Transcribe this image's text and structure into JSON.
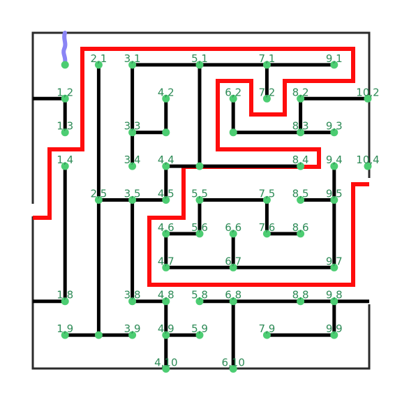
{
  "title": "",
  "colors": {
    "background": "#ffffff",
    "maze_wall": "#2a2a2a",
    "tree_edge": "#000000",
    "node": "#4ccd72",
    "label": "#2e8b57",
    "solution_path": "#ff0000",
    "start_marker": "#8a84f5"
  },
  "nodes": [
    {
      "id": "1,1",
      "label": "",
      "x": 1,
      "y": 1
    },
    {
      "id": "2,1",
      "label": "2,1",
      "x": 2,
      "y": 1
    },
    {
      "id": "3,1",
      "label": "3,1",
      "x": 3,
      "y": 1
    },
    {
      "id": "5,1",
      "label": "5,1",
      "x": 5,
      "y": 1
    },
    {
      "id": "7,1",
      "label": "7,1",
      "x": 7,
      "y": 1
    },
    {
      "id": "9,1",
      "label": "9,1",
      "x": 9,
      "y": 1
    },
    {
      "id": "1,2",
      "label": "1,2",
      "x": 1,
      "y": 2
    },
    {
      "id": "4,2",
      "label": "4,2",
      "x": 4,
      "y": 2
    },
    {
      "id": "6,2",
      "label": "6,2",
      "x": 6,
      "y": 2
    },
    {
      "id": "7,2",
      "label": "7,2",
      "x": 7,
      "y": 2
    },
    {
      "id": "8,2",
      "label": "8,2",
      "x": 8,
      "y": 2
    },
    {
      "id": "10,2",
      "label": "10,2",
      "x": 10,
      "y": 2
    },
    {
      "id": "1,3",
      "label": "1,3",
      "x": 1,
      "y": 3
    },
    {
      "id": "3,3",
      "label": "3,3",
      "x": 3,
      "y": 3
    },
    {
      "id": "4,3",
      "label": "",
      "x": 4,
      "y": 3
    },
    {
      "id": "6,3",
      "label": "",
      "x": 6,
      "y": 3
    },
    {
      "id": "8,3",
      "label": "8,3",
      "x": 8,
      "y": 3
    },
    {
      "id": "9,3",
      "label": "9,3",
      "x": 9,
      "y": 3
    },
    {
      "id": "1,4",
      "label": "1,4",
      "x": 1,
      "y": 4
    },
    {
      "id": "3,4",
      "label": "3,4",
      "x": 3,
      "y": 4
    },
    {
      "id": "4,4",
      "label": "4,4",
      "x": 4,
      "y": 4
    },
    {
      "id": "5,4",
      "label": "",
      "x": 5,
      "y": 4
    },
    {
      "id": "8,4",
      "label": "8,4",
      "x": 8,
      "y": 4
    },
    {
      "id": "9,4",
      "label": "9,4",
      "x": 9,
      "y": 4
    },
    {
      "id": "10,4",
      "label": "10,4",
      "x": 10,
      "y": 4
    },
    {
      "id": "2,5",
      "label": "2,5",
      "x": 2,
      "y": 5
    },
    {
      "id": "3,5",
      "label": "3,5",
      "x": 3,
      "y": 5
    },
    {
      "id": "4,5",
      "label": "4,5",
      "x": 4,
      "y": 5
    },
    {
      "id": "5,5",
      "label": "5,5",
      "x": 5,
      "y": 5
    },
    {
      "id": "7,5",
      "label": "7,5",
      "x": 7,
      "y": 5
    },
    {
      "id": "8,5",
      "label": "8,5",
      "x": 8,
      "y": 5
    },
    {
      "id": "9,5",
      "label": "9,5",
      "x": 9,
      "y": 5
    },
    {
      "id": "4,6",
      "label": "4,6",
      "x": 4,
      "y": 6
    },
    {
      "id": "5,6",
      "label": "5,6",
      "x": 5,
      "y": 6
    },
    {
      "id": "6,6",
      "label": "6,6",
      "x": 6,
      "y": 6
    },
    {
      "id": "7,6",
      "label": "7,6",
      "x": 7,
      "y": 6
    },
    {
      "id": "8,6",
      "label": "8,6",
      "x": 8,
      "y": 6
    },
    {
      "id": "4,7",
      "label": "4,7",
      "x": 4,
      "y": 7
    },
    {
      "id": "6,7",
      "label": "6,7",
      "x": 6,
      "y": 7
    },
    {
      "id": "9,7",
      "label": "9,7",
      "x": 9,
      "y": 7
    },
    {
      "id": "1,8",
      "label": "1,8",
      "x": 1,
      "y": 8
    },
    {
      "id": "3,8",
      "label": "3,8",
      "x": 3,
      "y": 8
    },
    {
      "id": "4,8",
      "label": "4,8",
      "x": 4,
      "y": 8
    },
    {
      "id": "5,8",
      "label": "5,8",
      "x": 5,
      "y": 8
    },
    {
      "id": "6,8",
      "label": "6,8",
      "x": 6,
      "y": 8
    },
    {
      "id": "8,8",
      "label": "8,8",
      "x": 8,
      "y": 8
    },
    {
      "id": "9,8",
      "label": "9,8",
      "x": 9,
      "y": 8
    },
    {
      "id": "1,9",
      "label": "1,9",
      "x": 1,
      "y": 9
    },
    {
      "id": "2,9",
      "label": "",
      "x": 2,
      "y": 9
    },
    {
      "id": "3,9",
      "label": "3,9",
      "x": 3,
      "y": 9
    },
    {
      "id": "4,9",
      "label": "4,9",
      "x": 4,
      "y": 9
    },
    {
      "id": "5,9",
      "label": "5,9",
      "x": 5,
      "y": 9
    },
    {
      "id": "7,9",
      "label": "7,9",
      "x": 7,
      "y": 9
    },
    {
      "id": "9,9",
      "label": "9,9",
      "x": 9,
      "y": 9
    },
    {
      "id": "4,10",
      "label": "4,10",
      "x": 4,
      "y": 10
    },
    {
      "id": "6,10",
      "label": "6,10",
      "x": 6,
      "y": 10
    }
  ],
  "edges": [
    [
      "1,2",
      "1,3"
    ],
    [
      "1,4",
      "1,8"
    ],
    [
      "2,1",
      "2,9"
    ],
    [
      "3,1",
      "9,1"
    ],
    [
      "3,1",
      "3,4"
    ],
    [
      "3,3",
      "4,3"
    ],
    [
      "4,2",
      "4,3"
    ],
    [
      "5,1",
      "5,4"
    ],
    [
      "7,1",
      "7,2"
    ],
    [
      "6,2",
      "6,3"
    ],
    [
      "6,3",
      "9,3"
    ],
    [
      "8,2",
      "10,2"
    ],
    [
      "8,2",
      "8,3"
    ],
    [
      "4,4",
      "8,4"
    ],
    [
      "4,4",
      "4,5"
    ],
    [
      "2,5",
      "4,5"
    ],
    [
      "3,5",
      "3,8"
    ],
    [
      "5,5",
      "7,5"
    ],
    [
      "5,5",
      "5,6"
    ],
    [
      "7,5",
      "7,6"
    ],
    [
      "7,6",
      "8,6"
    ],
    [
      "8,5",
      "9,5"
    ],
    [
      "9,4",
      "9,7"
    ],
    [
      "4,6",
      "5,6"
    ],
    [
      "4,6",
      "4,7"
    ],
    [
      "4,7",
      "9,7"
    ],
    [
      "6,6",
      "6,7"
    ],
    [
      "3,8",
      "4,8"
    ],
    [
      "4,8",
      "4,10"
    ],
    [
      "4,9",
      "5,9"
    ],
    [
      "5,8",
      "9,8"
    ],
    [
      "6,8",
      "6,10"
    ],
    [
      "9,8",
      "9,9"
    ],
    [
      "7,9",
      "9,9"
    ],
    [
      "1,9",
      "3,9"
    ]
  ],
  "stubs": [
    {
      "node": "1,2",
      "dir": "left"
    },
    {
      "node": "1,8",
      "dir": "left"
    },
    {
      "node": "9,8",
      "dir": "right"
    }
  ],
  "solution_path": [
    "1,1",
    "2,1",
    "2,4",
    "1,4",
    "1,5",
    "0,5",
    "0,5",
    "0,5"
  ],
  "start_marker": "1,1"
}
